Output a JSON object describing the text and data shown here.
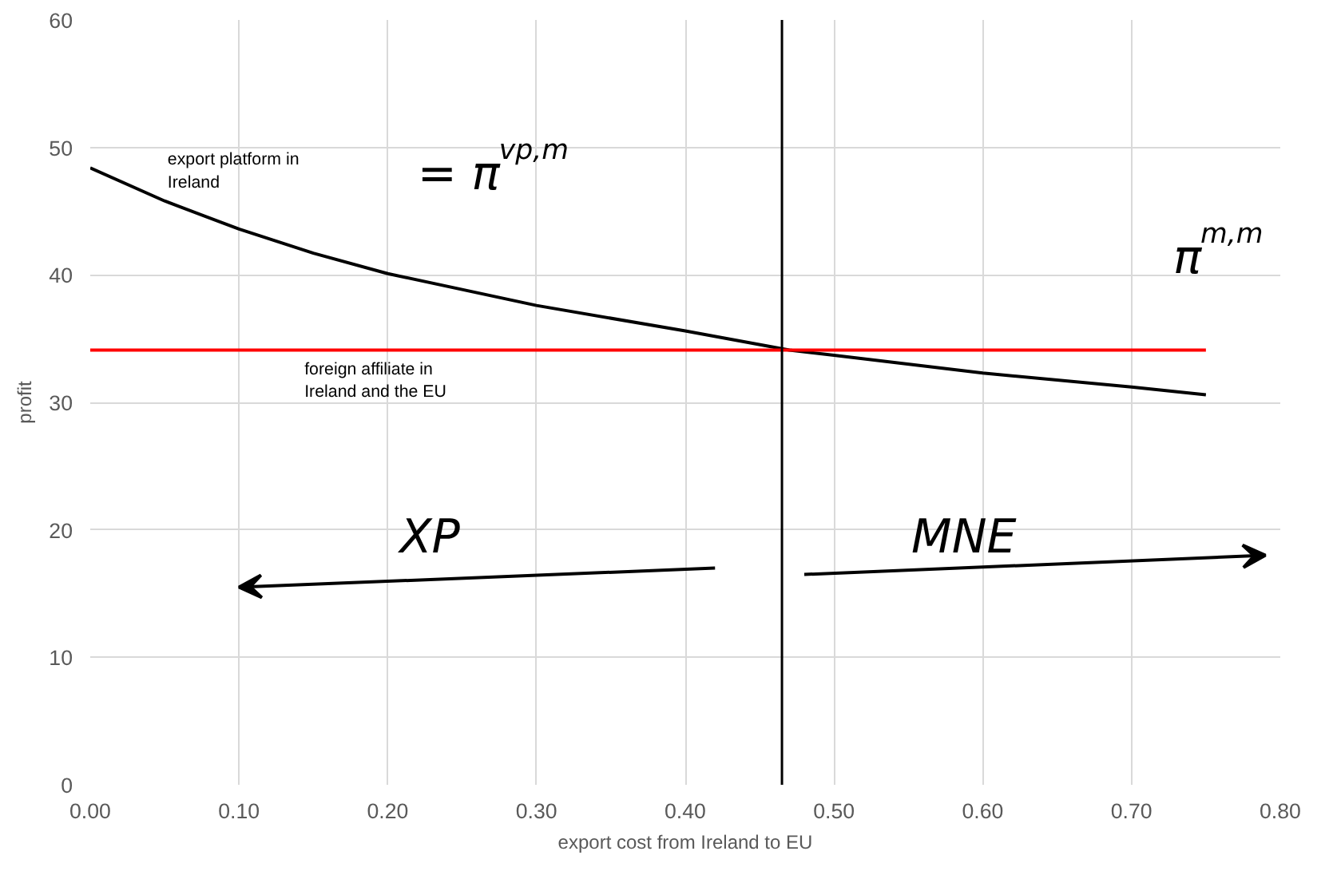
{
  "chart_data": {
    "type": "line",
    "xlabel": "export cost from Ireland to EU",
    "ylabel": "profit",
    "xlim": [
      0,
      0.8
    ],
    "ylim": [
      0,
      60
    ],
    "xticks": [
      {
        "value": 0,
        "label": "0.00"
      },
      {
        "value": 0.1,
        "label": "0.10"
      },
      {
        "value": 0.2,
        "label": "0.20"
      },
      {
        "value": 0.3,
        "label": "0.30"
      },
      {
        "value": 0.4,
        "label": "0.40"
      },
      {
        "value": 0.5,
        "label": "0.50"
      },
      {
        "value": 0.6,
        "label": "0.60"
      },
      {
        "value": 0.7,
        "label": "0.70"
      },
      {
        "value": 0.8,
        "label": "0.80"
      }
    ],
    "yticks": [
      0,
      10,
      20,
      30,
      40,
      50,
      60
    ],
    "grid": true,
    "series": [
      {
        "name": "export platform in Ireland",
        "color": "#000000",
        "x": [
          0,
          0.05,
          0.1,
          0.15,
          0.2,
          0.3,
          0.4,
          0.47,
          0.5,
          0.6,
          0.7,
          0.75
        ],
        "values": [
          48.4,
          45.8,
          43.6,
          41.7,
          40.1,
          37.6,
          35.6,
          34.1,
          33.7,
          32.3,
          31.2,
          30.6
        ]
      },
      {
        "name": "foreign affiliate in Ireland and the EU",
        "color": "#ff0000",
        "x": [
          0,
          0.75
        ],
        "values": [
          34.1,
          34.1
        ]
      }
    ],
    "ref_lines": [
      {
        "axis": "x",
        "value": 0.465,
        "label": null,
        "color": "#000000"
      }
    ],
    "annotations": [
      "= π$^{vp,m}$",
      "π$^{m,m}$",
      "XP",
      "MNE"
    ]
  }
}
